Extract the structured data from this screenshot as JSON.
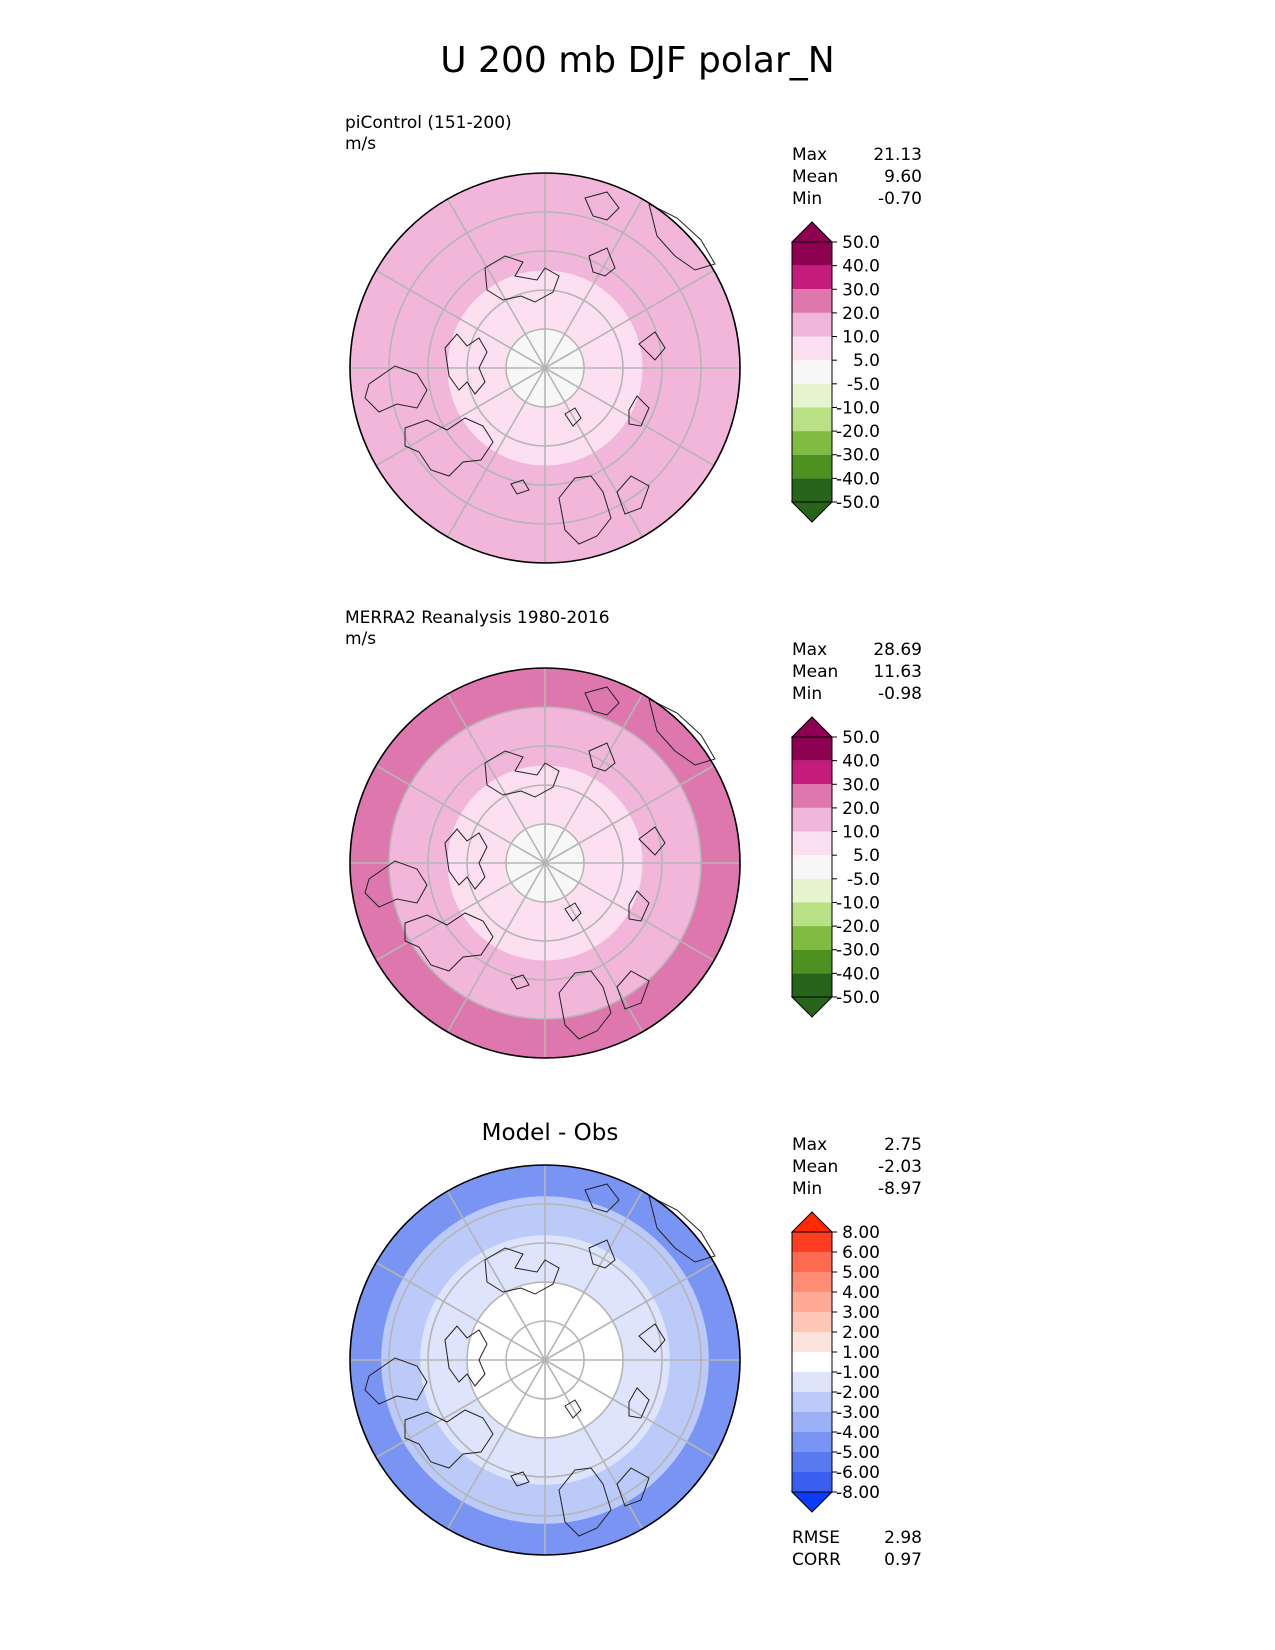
{
  "title": "U 200 mb DJF polar_N",
  "chart_data": [
    {
      "type": "heatmap",
      "panel_label": "piControl (151-200)",
      "units": "m/s",
      "stats": {
        "max_label": "Max",
        "max": "21.13",
        "mean_label": "Mean",
        "mean": "9.60",
        "min_label": "Min",
        "min": "-0.70"
      },
      "colorbar": {
        "ticks": [
          "50.0",
          "40.0",
          "30.0",
          "20.0",
          "10.0",
          "5.0",
          "-5.0",
          "-10.0",
          "-20.0",
          "-30.0",
          "-40.0",
          "-50.0"
        ],
        "colors": [
          "#8e0152",
          "#c51b7d",
          "#de77ae",
          "#f1b6da",
          "#fde0ef",
          "#f7f7f7",
          "#e6f5d0",
          "#b8e186",
          "#7fbc41",
          "#4d9221",
          "#276419"
        ],
        "over_color": "#8e0152",
        "under_color": "#276419"
      },
      "projection": "polar north stereographic",
      "field_levels": [
        {
          "lat_min": 80,
          "value": 3
        },
        {
          "lat_min": 65,
          "value": 8
        },
        {
          "lat_min": 50,
          "value": 12
        },
        {
          "lat_min": 40,
          "value": 15
        }
      ]
    },
    {
      "type": "heatmap",
      "panel_label": "MERRA2 Reanalysis 1980-2016",
      "units": "m/s",
      "stats": {
        "max_label": "Max",
        "max": "28.69",
        "mean_label": "Mean",
        "mean": "11.63",
        "min_label": "Min",
        "min": "-0.98"
      },
      "colorbar": {
        "ticks": [
          "50.0",
          "40.0",
          "30.0",
          "20.0",
          "10.0",
          "5.0",
          "-5.0",
          "-10.0",
          "-20.0",
          "-30.0",
          "-40.0",
          "-50.0"
        ],
        "colors": [
          "#8e0152",
          "#c51b7d",
          "#de77ae",
          "#f1b6da",
          "#fde0ef",
          "#f7f7f7",
          "#e6f5d0",
          "#b8e186",
          "#7fbc41",
          "#4d9221",
          "#276419"
        ],
        "over_color": "#8e0152",
        "under_color": "#276419"
      },
      "projection": "polar north stereographic",
      "field_levels": [
        {
          "lat_min": 80,
          "value": 3
        },
        {
          "lat_min": 65,
          "value": 9
        },
        {
          "lat_min": 50,
          "value": 14
        },
        {
          "lat_min": 40,
          "value": 22
        }
      ]
    },
    {
      "type": "heatmap",
      "panel_title": "Model - Obs",
      "stats": {
        "max_label": "Max",
        "max": "2.75",
        "mean_label": "Mean",
        "mean": "-2.03",
        "min_label": "Min",
        "min": "-8.97"
      },
      "metrics": {
        "rmse_label": "RMSE",
        "rmse": "2.98",
        "corr_label": "CORR",
        "corr": "0.97"
      },
      "colorbar": {
        "ticks": [
          "8.00",
          "6.00",
          "5.00",
          "4.00",
          "3.00",
          "2.00",
          "1.00",
          "-1.00",
          "-2.00",
          "-3.00",
          "-4.00",
          "-5.00",
          "-6.00",
          "-8.00"
        ],
        "colors": [
          "#ff3d22",
          "#ff6a4f",
          "#ff8c74",
          "#ffa996",
          "#ffc7b8",
          "#fde3dc",
          "#ffffff",
          "#dde4fc",
          "#bccaf9",
          "#9bb0f6",
          "#7a94f3",
          "#5979f0",
          "#3a5ff0"
        ],
        "over_color": "#ff2a00",
        "under_color": "#0a3cff"
      },
      "projection": "polar north stereographic",
      "field_levels": [
        {
          "lat_min": 70,
          "value": 0.5
        },
        {
          "lat_min": 58,
          "value": -1.5
        },
        {
          "lat_min": 48,
          "value": -2.5
        },
        {
          "lat_min": 40,
          "value": -4.5
        }
      ]
    }
  ]
}
